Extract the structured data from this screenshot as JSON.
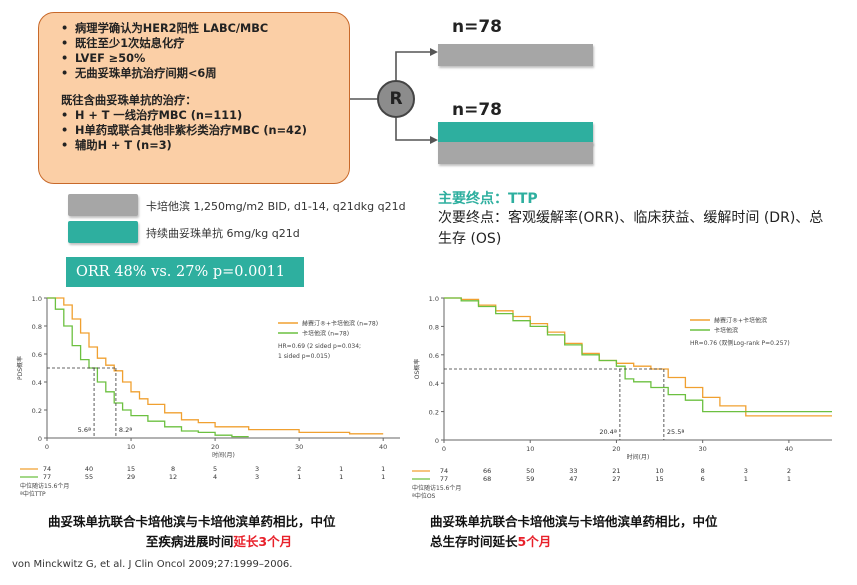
{
  "criteria": {
    "items": [
      "病理学确认为HER2阳性 LABC/MBC",
      "既往至少1次姑息化疗",
      "LVEF ≥50%",
      "无曲妥珠单抗治疗间期<6周"
    ],
    "prior_title": "既往含曲妥珠单抗的治疗：",
    "prior_items": [
      "H + T 一线治疗MBC (n=111)",
      "H单药或联合其他非紫杉类治疗MBC (n=42)",
      "辅助H + T (n=3)"
    ]
  },
  "legend": {
    "cape_label": "卡培他滨  1,250mg/m2 BID, d1-14, q21dkg q21d",
    "tras_label": "持续曲妥珠单抗 6mg/kg q21d",
    "colors": {
      "gray": "#a6a6a6",
      "teal": "#2eaf9f"
    }
  },
  "orr_text": "ORR 48% vs. 27% p=0.0011",
  "randomization": {
    "r_label": "R",
    "arm1_n": "n=78",
    "arm2_n": "n=78"
  },
  "endpoints": {
    "primary": "主要终点：TTP",
    "secondary": "次要终点：客观缓解率(ORR)、临床获益、缓解时间 (DR)、总生存 (OS)"
  },
  "chart_data": [
    {
      "type": "line",
      "ylabel": "PDS概率",
      "xlabel": "时间(月)",
      "xticks": [
        0,
        10,
        20,
        30,
        40
      ],
      "yticks": [
        "0",
        "0.2",
        "0.4",
        "0.6",
        "0.8",
        "1.0"
      ],
      "xlim": [
        0,
        42
      ],
      "ylim": [
        0,
        1
      ],
      "legend": [
        "赫赛汀®+卡培他滨 (n=78)",
        "卡培他滨 (n=78)"
      ],
      "legend_note": [
        "HR=0.69 (2 sided p=0.034;",
        "1 sided p=0.015)"
      ],
      "median_labels": [
        "5.6ª",
        "8.2ª"
      ],
      "medians": [
        5.6,
        8.2
      ],
      "series": [
        {
          "name": "赫赛汀®+卡培他滨 (n=78)",
          "color": "#f0a030",
          "x": [
            0,
            2,
            3,
            4,
            5,
            6,
            7,
            8,
            9,
            10,
            11,
            12,
            14,
            16,
            18,
            20,
            24,
            30,
            36,
            40
          ],
          "y": [
            1.0,
            0.95,
            0.85,
            0.75,
            0.65,
            0.57,
            0.52,
            0.48,
            0.4,
            0.33,
            0.28,
            0.24,
            0.18,
            0.13,
            0.11,
            0.08,
            0.06,
            0.04,
            0.03,
            0.03
          ]
        },
        {
          "name": "卡培他滨 (n=78)",
          "color": "#6cc040",
          "x": [
            0,
            1,
            2,
            3,
            4,
            5,
            6,
            7,
            8,
            9,
            10,
            12,
            14,
            16,
            18,
            20,
            22,
            24
          ],
          "y": [
            1.0,
            0.92,
            0.8,
            0.66,
            0.56,
            0.5,
            0.4,
            0.33,
            0.25,
            0.2,
            0.16,
            0.12,
            0.08,
            0.05,
            0.04,
            0.02,
            0.01,
            0.01
          ]
        }
      ],
      "risk_table": {
        "rows": [
          [
            "74",
            "40",
            "15",
            "8",
            "5",
            "3",
            "2",
            "1",
            "1"
          ],
          [
            "77",
            "55",
            "29",
            "12",
            "4",
            "3",
            "1",
            "1",
            "1"
          ]
        ],
        "x": [
          0,
          5,
          10,
          15,
          20,
          25,
          30,
          35,
          40
        ]
      },
      "notes": [
        "中位随访15.6个月",
        "ª中位TTP"
      ]
    },
    {
      "type": "line",
      "ylabel": "OS概率",
      "xlabel": "时间(月)",
      "xticks": [
        0,
        10,
        20,
        30,
        40
      ],
      "yticks": [
        "0",
        "0.2",
        "0.4",
        "0.6",
        "0.8",
        "1.0"
      ],
      "xlim": [
        0,
        45
      ],
      "ylim": [
        0,
        1
      ],
      "legend": [
        "赫赛汀®+卡培他滨",
        "卡培他滨"
      ],
      "legend_note": [
        "HR=0.76 (双侧Log-rank P=0.257)"
      ],
      "median_labels": [
        "20.4ª",
        "25.5ª"
      ],
      "medians": [
        20.4,
        25.5
      ],
      "series": [
        {
          "name": "赫赛汀®+卡培他滨",
          "color": "#f0a030",
          "x": [
            0,
            2,
            4,
            6,
            8,
            10,
            12,
            14,
            16,
            18,
            20,
            22,
            24,
            26,
            28,
            30,
            32,
            35,
            40,
            45
          ],
          "y": [
            1.0,
            0.99,
            0.95,
            0.91,
            0.87,
            0.82,
            0.76,
            0.68,
            0.61,
            0.56,
            0.54,
            0.52,
            0.5,
            0.44,
            0.37,
            0.3,
            0.24,
            0.17,
            0.17,
            0.17
          ]
        },
        {
          "name": "卡培他滨",
          "color": "#6cc040",
          "x": [
            0,
            2,
            4,
            6,
            8,
            10,
            12,
            14,
            16,
            18,
            20,
            21,
            22,
            24,
            26,
            28,
            30,
            35,
            40,
            45
          ],
          "y": [
            1.0,
            0.98,
            0.94,
            0.89,
            0.84,
            0.8,
            0.74,
            0.67,
            0.6,
            0.56,
            0.52,
            0.43,
            0.41,
            0.37,
            0.32,
            0.28,
            0.2,
            0.2,
            0.2,
            0.2
          ]
        }
      ],
      "risk_table": {
        "rows": [
          [
            "74",
            "66",
            "50",
            "33",
            "21",
            "10",
            "8",
            "3",
            "2"
          ],
          [
            "77",
            "68",
            "59",
            "47",
            "27",
            "15",
            "6",
            "1",
            "1"
          ]
        ],
        "x": [
          0,
          5,
          10,
          15,
          20,
          25,
          30,
          35,
          40
        ]
      },
      "notes": [
        "中位随访15.6个月",
        "ª中位OS"
      ]
    }
  ],
  "captions": {
    "left_line1": "曲妥珠单抗联合卡培他滨与卡培他滨单药相比，中位",
    "left_line2a": "至疾病进展时间",
    "left_line2b": "延长3个月",
    "right_line1": "曲妥珠单抗联合卡培他滨与卡培他滨单药相比，中位",
    "right_line2a": "总生存时间延长",
    "right_line2b": "5个月"
  },
  "reference": "von Minckwitz G, et al. J Clin Oncol 2009;27:1999–2006."
}
